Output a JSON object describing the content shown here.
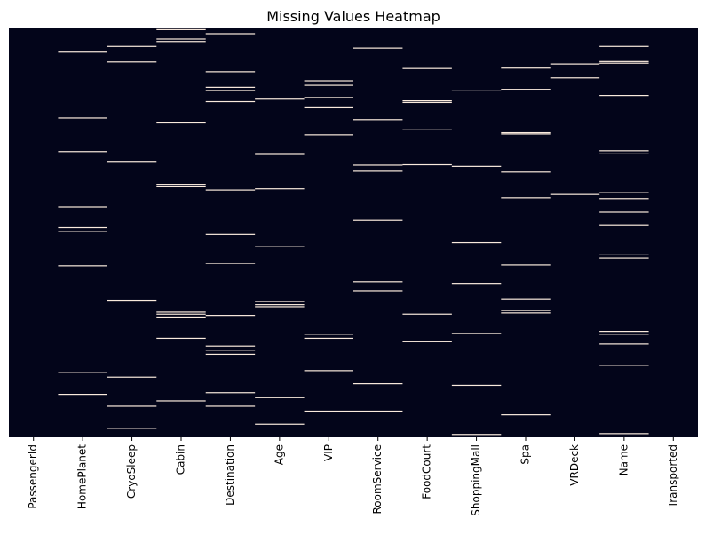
{
  "chart_data": {
    "type": "heatmap",
    "title": "Missing Values Heatmap",
    "xlabel": "",
    "ylabel": "",
    "columns": [
      "PassengerId",
      "HomePlanet",
      "CryoSleep",
      "Cabin",
      "Destination",
      "Age",
      "VIP",
      "RoomService",
      "FoodCourt",
      "ShoppingMall",
      "Spa",
      "VRDeck",
      "Name",
      "Transported"
    ],
    "row_range": [
      0,
      1
    ],
    "missing_color": "#faebdd",
    "present_color": "#03051a",
    "colorbar": false,
    "missing_positions": [
      [],
      [
        0.058,
        0.219,
        0.301,
        0.436,
        0.487,
        0.497,
        0.581,
        0.842,
        0.895
      ],
      [
        0.044,
        0.082,
        0.327,
        0.665,
        0.853,
        0.924,
        0.978
      ],
      [
        0.003,
        0.026,
        0.032,
        0.231,
        0.381,
        0.387,
        0.694,
        0.699,
        0.706,
        0.758,
        0.911
      ],
      [
        0.013,
        0.106,
        0.144,
        0.152,
        0.179,
        0.395,
        0.504,
        0.575,
        0.702,
        0.777,
        0.787,
        0.797,
        0.891,
        0.924
      ],
      [
        0.173,
        0.308,
        0.392,
        0.534,
        0.668,
        0.676,
        0.681,
        0.903,
        0.968
      ],
      [
        0.128,
        0.139,
        0.169,
        0.194,
        0.26,
        0.748,
        0.758,
        0.837,
        0.936
      ],
      [
        0.048,
        0.223,
        0.334,
        0.349,
        0.469,
        0.62,
        0.642,
        0.869,
        0.936
      ],
      [
        0.098,
        0.177,
        0.181,
        0.248,
        0.333,
        0.699,
        0.765
      ],
      [
        0.151,
        0.337,
        0.524,
        0.624,
        0.746,
        0.873,
        0.993
      ],
      [
        0.097,
        0.149,
        0.255,
        0.258,
        0.351,
        0.414,
        0.579,
        0.662,
        0.69,
        0.696,
        0.945
      ],
      [
        0.087,
        0.121,
        0.406
      ],
      [
        0.044,
        0.081,
        0.085,
        0.164,
        0.299,
        0.305,
        0.401,
        0.416,
        0.449,
        0.482,
        0.554,
        0.562,
        0.741,
        0.748,
        0.772,
        0.824,
        0.991
      ],
      []
    ]
  }
}
